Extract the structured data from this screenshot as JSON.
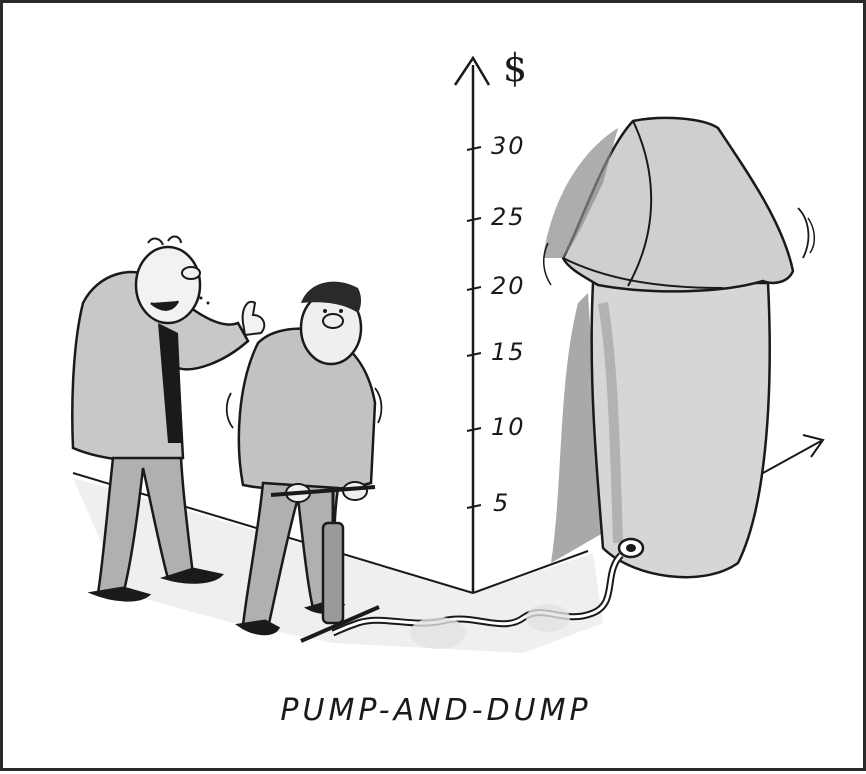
{
  "cartoon": {
    "caption": "PUMP-AND-DUMP",
    "axis_symbol": "$",
    "y_ticks": [
      "5",
      "10",
      "15",
      "20",
      "25",
      "30"
    ]
  },
  "colors": {
    "ink": "#1a1a1a",
    "wash_dark": "#8a8a8a",
    "wash_mid": "#b8b8b8",
    "wash_light": "#dcdcdc"
  }
}
